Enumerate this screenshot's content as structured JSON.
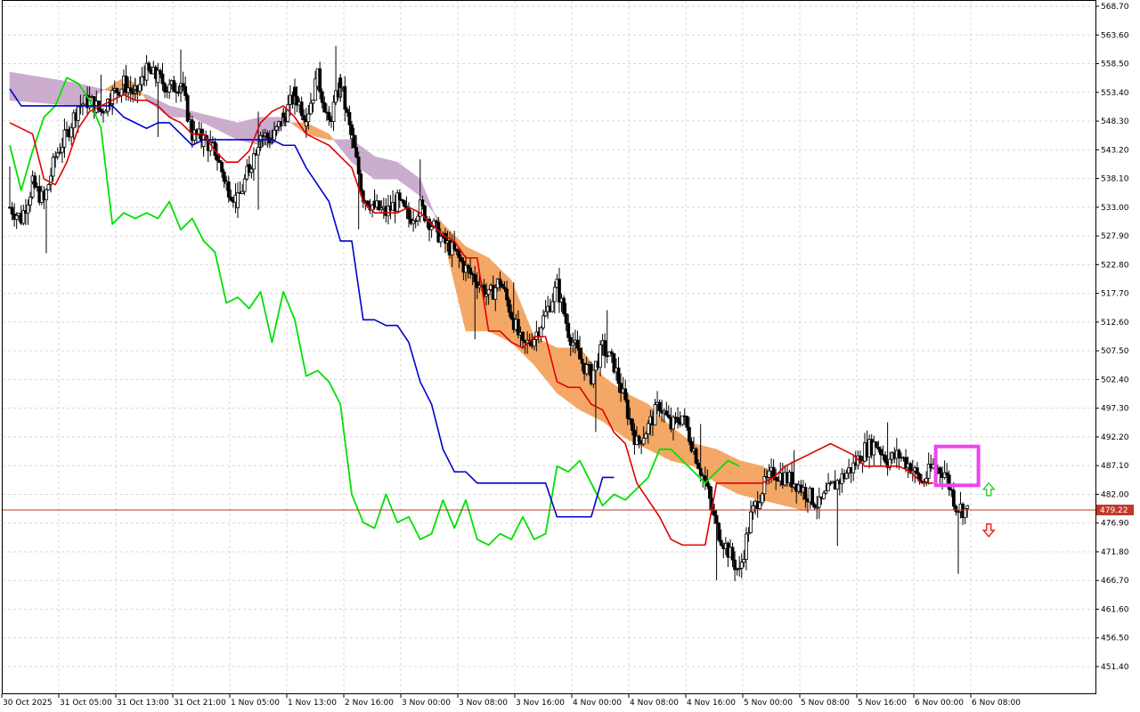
{
  "colors": {
    "background": "#ffffff",
    "grid": "#d8d8d8",
    "candle": "#000000",
    "cloud": "#c9a9cc",
    "cloud_alt": "#f4a460",
    "tenkan": "#e00000",
    "kijun": "#0000cc",
    "chikou": "#00e000",
    "price_line": "#c0392b",
    "highlight": "#ee44ee",
    "arrow_up": "#33cc33",
    "arrow_down": "#ee2222"
  },
  "chart_data": {
    "type": "candlestick",
    "title": "",
    "indicator": "Ichimoku Kinko Hyo",
    "ylim": [
      446.5,
      568.7
    ],
    "y_ticks": [
      "568.70",
      "563.60",
      "558.50",
      "553.40",
      "548.30",
      "543.20",
      "538.10",
      "533.00",
      "527.90",
      "522.80",
      "517.70",
      "512.60",
      "507.50",
      "502.40",
      "497.30",
      "492.20",
      "487.10",
      "482.00",
      "476.90",
      "471.80",
      "466.70",
      "461.60",
      "456.50",
      "451.40"
    ],
    "x_ticks": [
      "30 Oct 2025",
      "31 Oct 05:00",
      "31 Oct 13:00",
      "31 Oct 21:00",
      "1 Nov 05:00",
      "1 Nov 13:00",
      "2 Nov 16:00",
      "3 Nov 00:00",
      "3 Nov 08:00",
      "3 Nov 16:00",
      "4 Nov 00:00",
      "4 Nov 08:00",
      "4 Nov 16:00",
      "5 Nov 00:00",
      "5 Nov 08:00",
      "5 Nov 16:00",
      "6 Nov 00:00",
      "6 Nov 08:00"
    ],
    "current_price": "479.22",
    "price_anchors": [
      [
        0,
        533
      ],
      [
        1,
        531
      ],
      [
        2,
        537
      ],
      [
        3,
        534
      ],
      [
        4,
        542
      ],
      [
        5,
        546
      ],
      [
        6,
        551
      ],
      [
        7,
        552
      ],
      [
        8,
        550
      ],
      [
        9,
        553
      ],
      [
        10,
        555
      ],
      [
        11,
        553
      ],
      [
        12,
        557
      ],
      [
        13,
        556
      ],
      [
        14,
        554
      ],
      [
        15,
        555
      ],
      [
        16,
        546
      ],
      [
        17,
        545
      ],
      [
        18,
        543
      ],
      [
        19,
        537
      ],
      [
        20,
        534
      ],
      [
        21,
        540
      ],
      [
        22,
        546
      ],
      [
        23,
        545
      ],
      [
        24,
        549
      ],
      [
        25,
        553
      ],
      [
        26,
        549
      ],
      [
        27,
        556
      ],
      [
        28,
        548
      ],
      [
        29,
        555
      ],
      [
        30,
        545
      ],
      [
        31,
        535
      ],
      [
        32,
        533
      ],
      [
        33,
        532
      ],
      [
        34,
        534
      ],
      [
        35,
        531
      ],
      [
        36,
        533
      ],
      [
        37,
        530
      ],
      [
        38,
        527
      ],
      [
        39,
        525
      ],
      [
        40,
        522
      ],
      [
        41,
        520
      ],
      [
        42,
        517
      ],
      [
        43,
        520
      ],
      [
        44,
        514
      ],
      [
        45,
        508
      ],
      [
        46,
        510
      ],
      [
        47,
        514
      ],
      [
        48,
        519
      ],
      [
        49,
        511
      ],
      [
        50,
        506
      ],
      [
        51,
        503
      ],
      [
        52,
        508
      ],
      [
        53,
        505
      ],
      [
        54,
        498
      ],
      [
        55,
        491
      ],
      [
        56,
        494
      ],
      [
        57,
        498
      ],
      [
        58,
        494
      ],
      [
        59,
        496
      ],
      [
        60,
        490
      ],
      [
        61,
        484
      ],
      [
        62,
        476
      ],
      [
        63,
        472
      ],
      [
        64,
        468
      ],
      [
        65,
        478
      ],
      [
        66,
        483
      ],
      [
        67,
        486
      ],
      [
        68,
        485
      ],
      [
        69,
        484
      ],
      [
        70,
        482
      ],
      [
        71,
        480
      ],
      [
        72,
        483
      ],
      [
        73,
        485
      ],
      [
        74,
        487
      ],
      [
        75,
        490
      ],
      [
        76,
        491
      ],
      [
        77,
        488
      ],
      [
        78,
        489
      ],
      [
        79,
        487
      ],
      [
        80,
        484
      ],
      [
        81,
        487
      ],
      [
        82,
        486
      ],
      [
        83,
        480
      ],
      [
        84,
        479
      ]
    ],
    "series": [
      {
        "name": "",
        "line": "tenkan",
        "values": [
          [
            0,
            548
          ],
          [
            2,
            546
          ],
          [
            3,
            538
          ],
          [
            4,
            537
          ],
          [
            5,
            541
          ],
          [
            6,
            547
          ],
          [
            7,
            550
          ],
          [
            8,
            551
          ],
          [
            9,
            552
          ],
          [
            10,
            553
          ],
          [
            11,
            552
          ],
          [
            12,
            552
          ],
          [
            13,
            551
          ],
          [
            14,
            549
          ],
          [
            15,
            548
          ],
          [
            16,
            546
          ],
          [
            17,
            546
          ],
          [
            18,
            543
          ],
          [
            19,
            541
          ],
          [
            20,
            541
          ],
          [
            21,
            543
          ],
          [
            22,
            548
          ],
          [
            23,
            550
          ],
          [
            24,
            551
          ],
          [
            25,
            549
          ],
          [
            26,
            546
          ],
          [
            27,
            545
          ],
          [
            28,
            544
          ],
          [
            29,
            542
          ],
          [
            30,
            540
          ],
          [
            31,
            534
          ],
          [
            32,
            532
          ],
          [
            33,
            532
          ],
          [
            34,
            532
          ],
          [
            35,
            533
          ],
          [
            36,
            532
          ],
          [
            37,
            530
          ],
          [
            38,
            528
          ],
          [
            39,
            527
          ],
          [
            40,
            524
          ],
          [
            41,
            524
          ],
          [
            42,
            511
          ],
          [
            43,
            511
          ],
          [
            44,
            509
          ],
          [
            45,
            508
          ],
          [
            46,
            510
          ],
          [
            47,
            510
          ],
          [
            48,
            502
          ],
          [
            49,
            501
          ],
          [
            50,
            501
          ],
          [
            51,
            498
          ],
          [
            52,
            497
          ],
          [
            53,
            493
          ],
          [
            54,
            491
          ],
          [
            55,
            484
          ],
          [
            56,
            481
          ],
          [
            57,
            478
          ],
          [
            58,
            474
          ],
          [
            59,
            473
          ],
          [
            60,
            473
          ],
          [
            61,
            473
          ],
          [
            62,
            484
          ],
          [
            63,
            484
          ],
          [
            64,
            484
          ],
          [
            65,
            484
          ],
          [
            66,
            484
          ],
          [
            67,
            485
          ],
          [
            68,
            487
          ],
          [
            69,
            488
          ],
          [
            70,
            489
          ],
          [
            71,
            490
          ],
          [
            72,
            491
          ],
          [
            73,
            490
          ],
          [
            74,
            489
          ],
          [
            75,
            487
          ],
          [
            76,
            487
          ],
          [
            77,
            487
          ],
          [
            78,
            487
          ],
          [
            79,
            486
          ],
          [
            80,
            484
          ],
          [
            81,
            484
          ]
        ]
      },
      {
        "name": "",
        "line": "kijun",
        "values": [
          [
            0,
            554
          ],
          [
            1,
            551
          ],
          [
            8,
            551
          ],
          [
            9,
            551
          ],
          [
            10,
            549
          ],
          [
            12,
            547
          ],
          [
            13,
            548
          ],
          [
            14,
            548
          ],
          [
            15,
            546
          ],
          [
            16,
            544
          ],
          [
            17,
            545
          ],
          [
            18,
            545
          ],
          [
            23,
            545
          ],
          [
            24,
            544
          ],
          [
            25,
            544
          ],
          [
            26,
            540
          ],
          [
            27,
            537
          ],
          [
            28,
            534
          ],
          [
            29,
            527
          ],
          [
            30,
            527
          ],
          [
            31,
            513
          ],
          [
            32,
            513
          ],
          [
            33,
            512
          ],
          [
            34,
            512
          ],
          [
            35,
            509
          ],
          [
            36,
            502
          ],
          [
            37,
            498
          ],
          [
            38,
            490
          ],
          [
            39,
            486
          ],
          [
            40,
            486
          ],
          [
            41,
            484
          ],
          [
            42,
            484
          ],
          [
            43,
            484
          ],
          [
            44,
            484
          ],
          [
            45,
            484
          ],
          [
            46,
            484
          ],
          [
            47,
            484
          ],
          [
            48,
            478
          ],
          [
            49,
            478
          ],
          [
            50,
            478
          ],
          [
            51,
            478
          ],
          [
            52,
            485
          ],
          [
            53,
            485
          ]
        ]
      },
      {
        "name": "",
        "line": "chikou",
        "values": [
          [
            0,
            544
          ],
          [
            1,
            536
          ],
          [
            2,
            543
          ],
          [
            3,
            549
          ],
          [
            4,
            551
          ],
          [
            5,
            556
          ],
          [
            6,
            555
          ],
          [
            7,
            552
          ],
          [
            8,
            547
          ],
          [
            9,
            530
          ],
          [
            10,
            532
          ],
          [
            11,
            531
          ],
          [
            12,
            532
          ],
          [
            13,
            531
          ],
          [
            14,
            534
          ],
          [
            15,
            529
          ],
          [
            16,
            531
          ],
          [
            17,
            527
          ],
          [
            18,
            525
          ],
          [
            19,
            516
          ],
          [
            20,
            517
          ],
          [
            21,
            515
          ],
          [
            22,
            518
          ],
          [
            23,
            509
          ],
          [
            24,
            518
          ],
          [
            25,
            513
          ],
          [
            26,
            503
          ],
          [
            27,
            504
          ],
          [
            28,
            502
          ],
          [
            29,
            498
          ],
          [
            30,
            482
          ],
          [
            31,
            477
          ],
          [
            32,
            476
          ],
          [
            33,
            482
          ],
          [
            34,
            477
          ],
          [
            35,
            478
          ],
          [
            36,
            474
          ],
          [
            37,
            475
          ],
          [
            38,
            481
          ],
          [
            39,
            476
          ],
          [
            40,
            481
          ],
          [
            41,
            474
          ],
          [
            42,
            473
          ],
          [
            43,
            475
          ],
          [
            44,
            474
          ],
          [
            45,
            478
          ],
          [
            46,
            474
          ],
          [
            47,
            475
          ],
          [
            48,
            487
          ],
          [
            49,
            486
          ],
          [
            50,
            488
          ],
          [
            51,
            484
          ],
          [
            52,
            480
          ],
          [
            53,
            482
          ],
          [
            54,
            481
          ],
          [
            55,
            483
          ],
          [
            56,
            485
          ],
          [
            57,
            490
          ],
          [
            58,
            490
          ],
          [
            59,
            488
          ],
          [
            60,
            486
          ],
          [
            61,
            484
          ],
          [
            62,
            486
          ],
          [
            63,
            488
          ],
          [
            64,
            487
          ]
        ]
      },
      {
        "name": "",
        "line": "senkou_a",
        "values": [
          [
            0,
            552
          ],
          [
            6,
            551
          ],
          [
            10,
            556
          ],
          [
            11,
            555
          ],
          [
            12,
            552
          ],
          [
            14,
            549
          ],
          [
            16,
            549
          ],
          [
            18,
            547
          ],
          [
            20,
            545
          ],
          [
            22,
            544
          ],
          [
            23,
            544
          ],
          [
            24,
            548
          ],
          [
            26,
            548
          ],
          [
            28,
            546
          ],
          [
            30,
            541
          ],
          [
            32,
            538
          ],
          [
            34,
            538
          ],
          [
            36,
            535
          ],
          [
            38,
            530
          ],
          [
            40,
            526
          ],
          [
            42,
            524
          ],
          [
            44,
            520
          ],
          [
            46,
            510
          ],
          [
            48,
            508
          ],
          [
            50,
            508
          ],
          [
            52,
            503
          ],
          [
            54,
            500
          ],
          [
            56,
            498
          ],
          [
            58,
            494
          ],
          [
            60,
            491
          ],
          [
            62,
            490
          ],
          [
            64,
            488
          ],
          [
            66,
            487
          ],
          [
            68,
            484
          ],
          [
            70,
            482
          ]
        ]
      },
      {
        "name": "",
        "line": "senkou_b",
        "values": [
          [
            0,
            557
          ],
          [
            6,
            555
          ],
          [
            10,
            553
          ],
          [
            12,
            553
          ],
          [
            14,
            551
          ],
          [
            16,
            550
          ],
          [
            18,
            549
          ],
          [
            20,
            548
          ],
          [
            22,
            549
          ],
          [
            24,
            549
          ],
          [
            26,
            546
          ],
          [
            28,
            545
          ],
          [
            30,
            545
          ],
          [
            32,
            542
          ],
          [
            34,
            541
          ],
          [
            36,
            538
          ],
          [
            38,
            528
          ],
          [
            40,
            511
          ],
          [
            42,
            511
          ],
          [
            44,
            509
          ],
          [
            46,
            505
          ],
          [
            48,
            500
          ],
          [
            50,
            497
          ],
          [
            52,
            495
          ],
          [
            54,
            492
          ],
          [
            56,
            490
          ],
          [
            58,
            488
          ],
          [
            60,
            487
          ],
          [
            62,
            484
          ],
          [
            64,
            482
          ],
          [
            66,
            481
          ],
          [
            68,
            480
          ],
          [
            70,
            479
          ]
        ]
      }
    ]
  }
}
